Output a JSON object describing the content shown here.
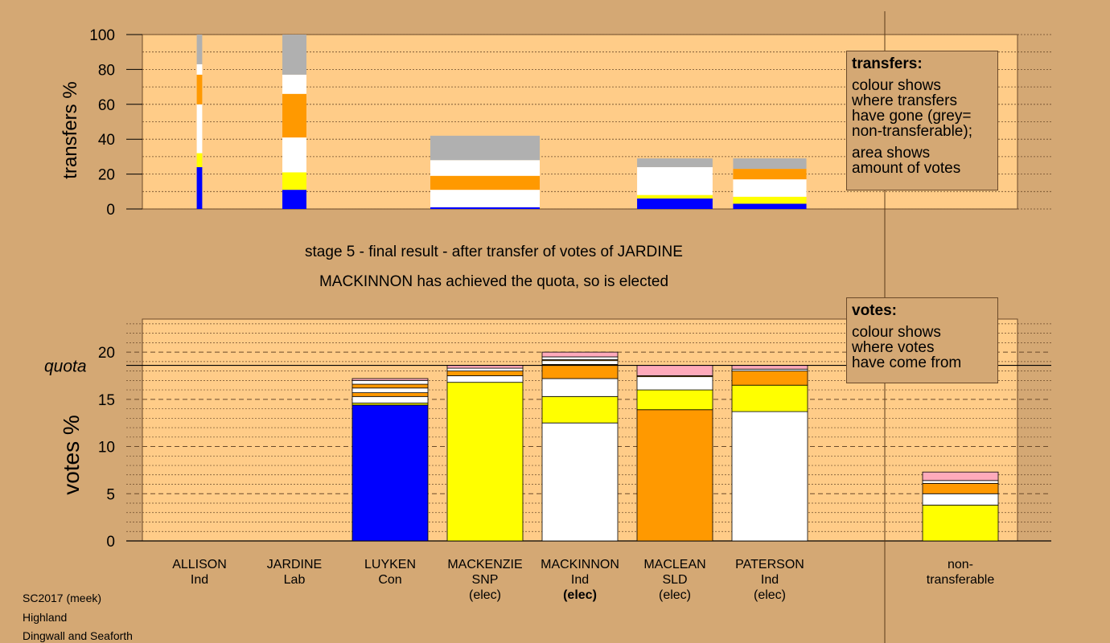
{
  "colors": {
    "blue": "#0000ff",
    "yellow": "#ffff00",
    "white": "#ffffff",
    "orange": "#ff9900",
    "pink": "#ffaabb",
    "grey": "#b0b0b0",
    "plot_bg": "#ffcc88",
    "page_bg": "#d4a874"
  },
  "headings": {
    "stage": "stage 5 - final result - after transfer of votes of JARDINE",
    "result": "MACKINNON has achieved the quota, so is elected"
  },
  "info": {
    "election": "SC2017 (meek)",
    "council": "Highland",
    "ward": "Dingwall and Seaforth"
  },
  "legend_transfers": {
    "title": "transfers:",
    "line1": "colour shows",
    "line2": "where transfers",
    "line3": "have gone (grey=",
    "line4": "non-transferable);",
    "line5": "area shows",
    "line6": "amount of votes"
  },
  "legend_votes": {
    "title": "votes:",
    "line1": "colour shows",
    "line2": "where votes",
    "line3": "have come from"
  },
  "chart_data": [
    {
      "type": "bar",
      "name": "transfers",
      "ylabel": "transfers %",
      "ylim": [
        0,
        100
      ],
      "yticks": [
        0,
        20,
        40,
        60,
        80,
        100
      ],
      "grid": true,
      "note": "stacked bars; bar width shows amount of votes transferred",
      "categories": [
        "ALLISON",
        "JARDINE",
        "LUYKEN",
        "MACKENZIE",
        "MACKINNON",
        "MACLEAN",
        "PATERSON"
      ],
      "bars": [
        {
          "candidate": "ALLISON",
          "relative_width": 0.05,
          "segments": [
            {
              "color": "blue",
              "value": 24
            },
            {
              "color": "yellow",
              "value": 8
            },
            {
              "color": "white",
              "value": 28
            },
            {
              "color": "orange",
              "value": 17
            },
            {
              "color": "white",
              "value": 6
            },
            {
              "color": "grey",
              "value": 17
            }
          ]
        },
        {
          "candidate": "JARDINE",
          "relative_width": 0.22,
          "segments": [
            {
              "color": "blue",
              "value": 11
            },
            {
              "color": "yellow",
              "value": 10
            },
            {
              "color": "white",
              "value": 20
            },
            {
              "color": "orange",
              "value": 25
            },
            {
              "color": "white",
              "value": 11
            },
            {
              "color": "grey",
              "value": 23
            }
          ]
        },
        {
          "candidate": "MACKENZIE",
          "relative_width": 1.0,
          "segments": [
            {
              "color": "blue",
              "value": 1
            },
            {
              "color": "white",
              "value": 10
            },
            {
              "color": "orange",
              "value": 8
            },
            {
              "color": "white",
              "value": 9
            },
            {
              "color": "grey",
              "value": 14
            }
          ]
        },
        {
          "candidate": "MACLEAN",
          "relative_width": 0.69,
          "segments": [
            {
              "color": "blue",
              "value": 6
            },
            {
              "color": "yellow",
              "value": 2
            },
            {
              "color": "white",
              "value": 16
            },
            {
              "color": "grey",
              "value": 5
            }
          ]
        },
        {
          "candidate": "PATERSON",
          "relative_width": 0.67,
          "segments": [
            {
              "color": "blue",
              "value": 3
            },
            {
              "color": "yellow",
              "value": 4
            },
            {
              "color": "white",
              "value": 10
            },
            {
              "color": "orange",
              "value": 6
            },
            {
              "color": "grey",
              "value": 6
            }
          ]
        }
      ]
    },
    {
      "type": "bar",
      "name": "votes",
      "ylabel": "votes %",
      "ylim": [
        0,
        23.5
      ],
      "yticks": [
        0,
        5,
        10,
        15,
        20
      ],
      "quota": 18.6,
      "quota_label": "quota",
      "grid": true,
      "categories": [
        {
          "name": "ALLISON",
          "party": "Ind",
          "status": ""
        },
        {
          "name": "JARDINE",
          "party": "Lab",
          "status": ""
        },
        {
          "name": "LUYKEN",
          "party": "Con",
          "status": ""
        },
        {
          "name": "MACKENZIE",
          "party": "SNP",
          "status": "(elec)"
        },
        {
          "name": "MACKINNON",
          "party": "Ind",
          "status": "(elec)"
        },
        {
          "name": "MACLEAN",
          "party": "SLD",
          "status": "(elec)"
        },
        {
          "name": "PATERSON",
          "party": "Ind",
          "status": "(elec)"
        },
        {
          "name": "non-",
          "party": "transferable",
          "status": ""
        }
      ],
      "stacks": [
        [],
        [],
        [
          {
            "color": "blue",
            "value": 14.4
          },
          {
            "color": "yellow",
            "value": 0.2
          },
          {
            "color": "white",
            "value": 0.7
          },
          {
            "color": "orange",
            "value": 0.4
          },
          {
            "color": "white",
            "value": 0.5
          },
          {
            "color": "orange",
            "value": 0.4
          },
          {
            "color": "white",
            "value": 0.4
          },
          {
            "color": "pink",
            "value": 0.2
          }
        ],
        [
          {
            "color": "yellow",
            "value": 16.8
          },
          {
            "color": "white",
            "value": 0.7
          },
          {
            "color": "orange",
            "value": 0.5
          },
          {
            "color": "white",
            "value": 0.3
          },
          {
            "color": "pink",
            "value": 0.3
          }
        ],
        [
          {
            "color": "white",
            "value": 12.5
          },
          {
            "color": "yellow",
            "value": 2.8
          },
          {
            "color": "white",
            "value": 1.9
          },
          {
            "color": "orange",
            "value": 1.5
          },
          {
            "color": "white",
            "value": 0.4
          },
          {
            "color": "orange",
            "value": 0.1
          },
          {
            "color": "white",
            "value": 0.3
          },
          {
            "color": "pink",
            "value": 0.5
          }
        ],
        [
          {
            "color": "orange",
            "value": 13.9
          },
          {
            "color": "yellow",
            "value": 2.1
          },
          {
            "color": "white",
            "value": 1.4
          },
          {
            "color": "orange",
            "value": 0.1
          },
          {
            "color": "pink",
            "value": 1.1
          }
        ],
        [
          {
            "color": "white",
            "value": 13.7
          },
          {
            "color": "yellow",
            "value": 2.8
          },
          {
            "color": "orange",
            "value": 1.5
          },
          {
            "color": "white",
            "value": 0.2
          },
          {
            "color": "pink",
            "value": 0.4
          }
        ],
        [
          {
            "color": "yellow",
            "value": 3.8
          },
          {
            "color": "white",
            "value": 1.2
          },
          {
            "color": "orange",
            "value": 1.1
          },
          {
            "color": "white",
            "value": 0.3
          },
          {
            "color": "pink",
            "value": 0.9
          }
        ]
      ]
    }
  ]
}
